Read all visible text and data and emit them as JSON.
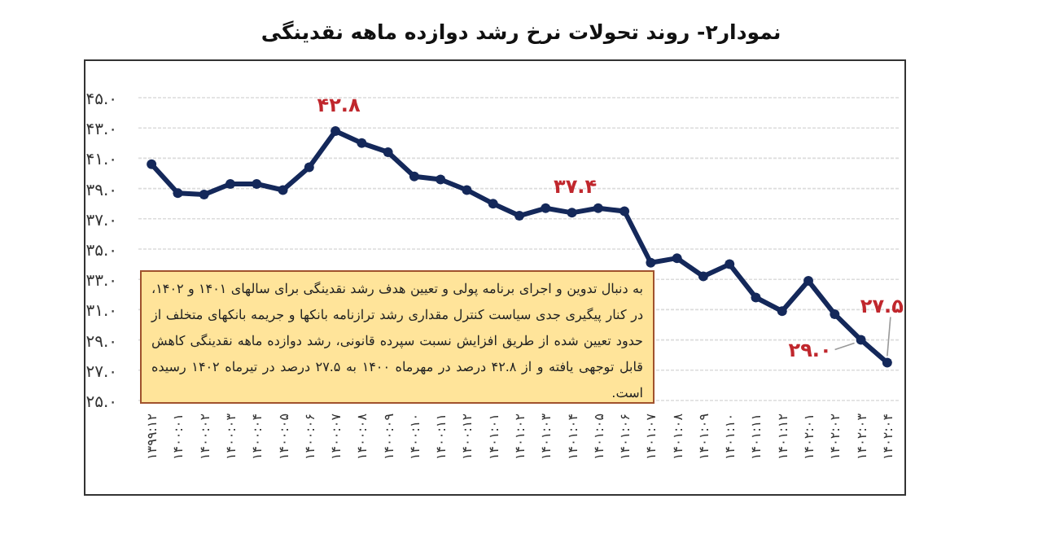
{
  "chart_data": {
    "type": "line",
    "title": "نمودار۲- روند تحولات نرخ رشد دوازده ماهه نقدینگی",
    "categories": [
      "۱۳۹۹:۱۲",
      "۱۴۰۰:۰۱",
      "۱۴۰۰:۰۲",
      "۱۴۰۰:۰۳",
      "۱۴۰۰:۰۴",
      "۱۴۰۰:۰۵",
      "۱۴۰۰:۰۶",
      "۱۴۰۰:۰۷",
      "۱۴۰۰:۰۸",
      "۱۴۰۰:۰۹",
      "۱۴۰۰:۱۰",
      "۱۴۰۰:۱۱",
      "۱۴۰۰:۱۲",
      "۱۴۰۱:۰۱",
      "۱۴۰۱:۰۲",
      "۱۴۰۱:۰۳",
      "۱۴۰۱:۰۴",
      "۱۴۰۱:۰۵",
      "۱۴۰۱:۰۶",
      "۱۴۰۱:۰۷",
      "۱۴۰۱:۰۸",
      "۱۴۰۱:۰۹",
      "۱۴۰۱:۱۰",
      "۱۴۰۱:۱۱",
      "۱۴۰۱:۱۲",
      "۱۴۰۲:۰۱",
      "۱۴۰۲:۰۲",
      "۱۴۰۲:۰۳",
      "۱۴۰۲:۰۴"
    ],
    "series": [
      {
        "color": "#14285a",
        "values": [
          40.6,
          38.7,
          38.6,
          39.3,
          39.3,
          38.9,
          40.4,
          42.8,
          42.0,
          41.4,
          39.8,
          39.6,
          38.9,
          38.0,
          37.2,
          37.7,
          37.4,
          37.7,
          37.5,
          34.1,
          34.4,
          33.2,
          34.0,
          31.8,
          30.9,
          32.9,
          30.7,
          29.0,
          27.5
        ],
        "value_labels": [
          null,
          null,
          null,
          null,
          null,
          null,
          null,
          "۴۲.۸",
          null,
          null,
          null,
          null,
          null,
          null,
          null,
          null,
          "۳۷.۴",
          null,
          null,
          null,
          null,
          null,
          null,
          null,
          null,
          null,
          null,
          "۲۹.۰",
          "۲۷.۵"
        ]
      }
    ],
    "ylim": [
      25,
      45
    ],
    "yticks": [
      {
        "value": 25,
        "label": "۲۵.۰"
      },
      {
        "value": 27,
        "label": "۲۷.۰"
      },
      {
        "value": 29,
        "label": "۲۹.۰"
      },
      {
        "value": 31,
        "label": "۳۱.۰"
      },
      {
        "value": 33,
        "label": "۳۳.۰"
      },
      {
        "value": 35,
        "label": "۳۵.۰"
      },
      {
        "value": 37,
        "label": "۳۷.۰"
      },
      {
        "value": 39,
        "label": "۳۹.۰"
      },
      {
        "value": 41,
        "label": "۴۱.۰"
      },
      {
        "value": 43,
        "label": "۴۳.۰"
      },
      {
        "value": 45,
        "label": "۴۵.۰"
      }
    ],
    "grid": "y",
    "marker": "circle",
    "annotations": [
      "به دنبال تدوین و اجرای برنامه پولی و تعیین هدف رشد نقدینگی برای سالهای ۱۴۰۱ و ۱۴۰۲، در کنار پیگیری جدی سیاست کنترل مقداری رشد ترازنامه بانکها و جریمه بانکهای متخلف از حدود تعیین شده از طریق افزایش نسبت سپرده قانونی، رشد دوازده ماهه نقدینگی کاهش قابل توجهی یافته و از ۴۲.۸ درصد در مهرماه ۱۴۰۰ به ۲۷.۵ درصد در تیرماه ۱۴۰۲ رسیده است."
    ]
  }
}
